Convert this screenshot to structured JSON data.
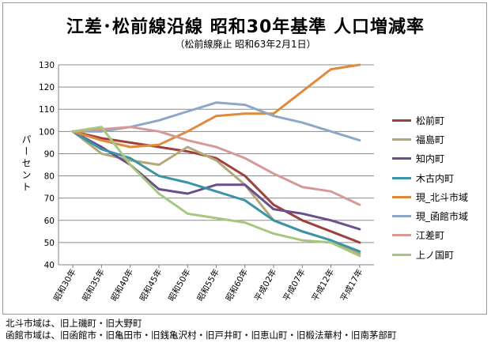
{
  "chart_data": {
    "type": "line",
    "title": "江差･松前線沿線 昭和30年基準 人口増減率",
    "subtitle": "（松前線廃止 昭和63年2月1日）",
    "ylabel": "パーセント",
    "xlabel": "",
    "ylim": [
      40,
      130
    ],
    "yticks": [
      40,
      50,
      60,
      70,
      80,
      90,
      100,
      110,
      120,
      130
    ],
    "grid": true,
    "legend_position": "right",
    "categories": [
      "昭和30年",
      "昭和35年",
      "昭和40年",
      "昭和45年",
      "昭和50年",
      "昭和55年",
      "昭和60年",
      "平成02年",
      "平成07年",
      "平成12年",
      "平成17年"
    ],
    "series": [
      {
        "name": "松前町",
        "color": "#a0403e",
        "values": [
          100,
          97,
          95,
          93,
          91,
          88,
          80,
          67,
          60,
          55,
          50
        ]
      },
      {
        "name": "福島町",
        "color": "#b3a878",
        "values": [
          100,
          90,
          87,
          85,
          93,
          87,
          76,
          60,
          55,
          51,
          45
        ]
      },
      {
        "name": "知内町",
        "color": "#6a4f8c",
        "values": [
          100,
          93,
          85,
          74,
          72,
          76,
          76,
          65,
          63,
          60,
          56
        ]
      },
      {
        "name": "木古内町",
        "color": "#3a93a6",
        "values": [
          100,
          92,
          88,
          80,
          77,
          73,
          69,
          60,
          55,
          51,
          46
        ]
      },
      {
        "name": "現_北斗市域",
        "color": "#e08a3c",
        "values": [
          100,
          96,
          93,
          94,
          100,
          107,
          108,
          108,
          118,
          128,
          130
        ]
      },
      {
        "name": "現_函館市域",
        "color": "#8ea6c8",
        "values": [
          100,
          100,
          102,
          105,
          109,
          113,
          112,
          107,
          104,
          100,
          96
        ]
      },
      {
        "name": "江差町",
        "color": "#d59a96",
        "values": [
          100,
          101,
          102,
          100,
          96,
          93,
          88,
          81,
          75,
          73,
          67
        ]
      },
      {
        "name": "上ノ国町",
        "color": "#a6c77e",
        "values": [
          100,
          102,
          85,
          72,
          63,
          61,
          59,
          54,
          51,
          50,
          44
        ]
      }
    ]
  },
  "notes": [
    "北斗市域は、旧上磯町・旧大野町",
    "函館市域は、旧函館市・旧亀田市・旧銭亀沢村・旧戸井町・旧恵山町・旧椴法華村・旧南茅部町"
  ]
}
